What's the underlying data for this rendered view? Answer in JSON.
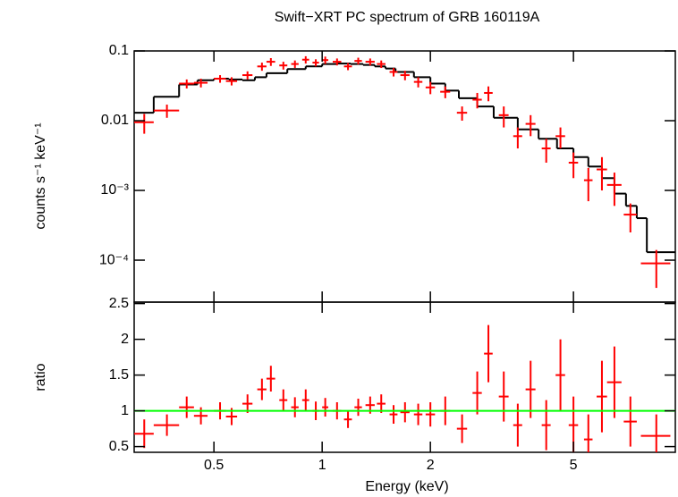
{
  "chart_data": [
    {
      "type": "scatter",
      "title": "Swift−XRT PC spectrum of GRB 160119A",
      "y_label": "counts s⁻¹ keV⁻¹",
      "xlog": true,
      "ylog": true,
      "xlim": [
        0.3,
        9.6
      ],
      "ylim": [
        2.5e-05,
        0.1
      ],
      "yticks": [
        0.1,
        0.01,
        {
          "value": 0.001,
          "label": "10⁻³"
        },
        {
          "value": 0.0001,
          "label": "10⁻⁴"
        }
      ],
      "color": "#ff0000",
      "x": [
        0.32,
        0.37,
        0.42,
        0.46,
        0.52,
        0.56,
        0.62,
        0.68,
        0.72,
        0.78,
        0.84,
        0.9,
        0.96,
        1.02,
        1.1,
        1.18,
        1.26,
        1.36,
        1.46,
        1.58,
        1.7,
        1.85,
        2.0,
        2.2,
        2.45,
        2.7,
        2.9,
        3.2,
        3.5,
        3.8,
        4.2,
        4.6,
        5.0,
        5.5,
        6.0,
        6.5,
        7.2,
        8.5
      ],
      "x_err": [
        0.02,
        0.03,
        0.02,
        0.02,
        0.02,
        0.02,
        0.02,
        0.02,
        0.02,
        0.02,
        0.02,
        0.02,
        0.02,
        0.02,
        0.03,
        0.03,
        0.03,
        0.04,
        0.04,
        0.04,
        0.05,
        0.05,
        0.06,
        0.07,
        0.08,
        0.08,
        0.08,
        0.1,
        0.1,
        0.12,
        0.12,
        0.14,
        0.15,
        0.15,
        0.2,
        0.3,
        0.3,
        0.8
      ],
      "values": [
        0.0095,
        0.014,
        0.034,
        0.035,
        0.04,
        0.037,
        0.045,
        0.06,
        0.07,
        0.062,
        0.065,
        0.075,
        0.068,
        0.074,
        0.07,
        0.06,
        0.072,
        0.07,
        0.065,
        0.05,
        0.045,
        0.036,
        0.03,
        0.026,
        0.013,
        0.02,
        0.025,
        0.012,
        0.006,
        0.009,
        0.004,
        0.006,
        0.0025,
        0.0014,
        0.002,
        0.0012,
        0.00045,
        9e-05
      ],
      "errors": [
        0.003,
        0.003,
        0.005,
        0.005,
        0.005,
        0.005,
        0.006,
        0.008,
        0.009,
        0.008,
        0.008,
        0.009,
        0.008,
        0.009,
        0.008,
        0.007,
        0.008,
        0.008,
        0.008,
        0.007,
        0.007,
        0.006,
        0.006,
        0.005,
        0.003,
        0.005,
        0.006,
        0.004,
        0.002,
        0.003,
        0.0015,
        0.002,
        0.001,
        0.0007,
        0.001,
        0.0006,
        0.0002,
        5e-05
      ],
      "model": {
        "color": "#000000",
        "bins": [
          0.3,
          0.34,
          0.4,
          0.45,
          0.5,
          0.55,
          0.6,
          0.65,
          0.7,
          0.8,
          0.9,
          1.0,
          1.1,
          1.2,
          1.3,
          1.4,
          1.5,
          1.6,
          1.8,
          2.0,
          2.2,
          2.4,
          2.7,
          3.0,
          3.5,
          4.0,
          4.5,
          5.0,
          5.5,
          6.0,
          6.5,
          7.0,
          7.5,
          8.0,
          9.6
        ],
        "values": [
          0.013,
          0.022,
          0.033,
          0.038,
          0.04,
          0.039,
          0.038,
          0.042,
          0.048,
          0.055,
          0.06,
          0.065,
          0.066,
          0.065,
          0.063,
          0.06,
          0.056,
          0.05,
          0.042,
          0.034,
          0.027,
          0.021,
          0.016,
          0.011,
          0.0075,
          0.0055,
          0.004,
          0.003,
          0.0022,
          0.0015,
          0.0009,
          0.0006,
          0.0004,
          0.00013
        ]
      }
    },
    {
      "type": "scatter",
      "x_label": "Energy (keV)",
      "y_label": "ratio",
      "xlog": true,
      "ylog": false,
      "xlim": [
        0.3,
        9.6
      ],
      "ylim": [
        0.42,
        2.52
      ],
      "xticks": [
        0.5,
        1,
        2,
        5
      ],
      "yticks": [
        0.5,
        1,
        1.5,
        2,
        2.5
      ],
      "color": "#ff0000",
      "reference_line": 1,
      "reference_color": "#00ff00",
      "x": [
        0.32,
        0.37,
        0.42,
        0.46,
        0.52,
        0.56,
        0.62,
        0.68,
        0.72,
        0.78,
        0.84,
        0.9,
        0.96,
        1.02,
        1.1,
        1.18,
        1.26,
        1.36,
        1.46,
        1.58,
        1.7,
        1.85,
        2.0,
        2.2,
        2.45,
        2.7,
        2.9,
        3.2,
        3.5,
        3.8,
        4.2,
        4.6,
        5.0,
        5.5,
        6.0,
        6.5,
        7.2,
        8.5
      ],
      "x_err": [
        0.02,
        0.03,
        0.02,
        0.02,
        0.02,
        0.02,
        0.02,
        0.02,
        0.02,
        0.02,
        0.02,
        0.02,
        0.02,
        0.02,
        0.03,
        0.03,
        0.03,
        0.04,
        0.04,
        0.04,
        0.05,
        0.05,
        0.06,
        0.07,
        0.08,
        0.08,
        0.08,
        0.1,
        0.1,
        0.12,
        0.12,
        0.14,
        0.15,
        0.15,
        0.2,
        0.3,
        0.3,
        0.8
      ],
      "values": [
        0.68,
        0.8,
        1.05,
        0.93,
        1.0,
        0.92,
        1.1,
        1.3,
        1.45,
        1.15,
        1.05,
        1.15,
        1.0,
        1.05,
        1.0,
        0.88,
        1.05,
        1.08,
        1.1,
        0.95,
        0.98,
        0.95,
        0.95,
        1.0,
        0.75,
        1.25,
        1.8,
        1.2,
        0.8,
        1.3,
        0.8,
        1.5,
        0.8,
        0.6,
        1.2,
        1.4,
        0.85,
        0.65
      ],
      "errors": [
        0.2,
        0.15,
        0.15,
        0.12,
        0.12,
        0.12,
        0.13,
        0.15,
        0.18,
        0.15,
        0.14,
        0.15,
        0.13,
        0.13,
        0.12,
        0.12,
        0.12,
        0.12,
        0.13,
        0.13,
        0.14,
        0.15,
        0.17,
        0.2,
        0.2,
        0.3,
        0.4,
        0.35,
        0.3,
        0.4,
        0.35,
        0.5,
        0.4,
        0.35,
        0.5,
        0.5,
        0.35,
        0.3
      ]
    }
  ]
}
